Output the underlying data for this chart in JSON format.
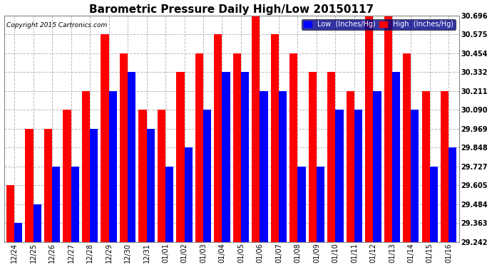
{
  "title": "Barometric Pressure Daily High/Low 20150117",
  "copyright": "Copyright 2015 Cartronics.com",
  "dates": [
    "12/24",
    "12/25",
    "12/26",
    "12/27",
    "12/28",
    "12/29",
    "12/30",
    "12/31",
    "01/01",
    "01/02",
    "01/03",
    "01/04",
    "01/05",
    "01/06",
    "01/07",
    "01/08",
    "01/09",
    "01/10",
    "01/11",
    "01/12",
    "01/13",
    "01/14",
    "01/15",
    "01/16"
  ],
  "high": [
    29.605,
    29.969,
    29.969,
    30.09,
    30.211,
    30.575,
    30.454,
    30.09,
    30.09,
    30.332,
    30.454,
    30.575,
    30.454,
    30.696,
    30.575,
    30.454,
    30.332,
    30.332,
    30.211,
    30.696,
    30.696,
    30.454,
    30.211,
    30.211
  ],
  "low": [
    29.363,
    29.484,
    29.727,
    29.727,
    29.969,
    30.211,
    30.332,
    29.969,
    29.727,
    29.848,
    30.09,
    30.332,
    30.332,
    30.211,
    30.211,
    29.727,
    29.727,
    30.09,
    30.09,
    30.211,
    30.332,
    30.09,
    29.727,
    29.848
  ],
  "high_color": "#ff0000",
  "low_color": "#0000ff",
  "bg_color": "#ffffff",
  "ylim_min": 29.242,
  "ylim_max": 30.696,
  "yticks": [
    29.242,
    29.363,
    29.484,
    29.605,
    29.727,
    29.848,
    29.969,
    30.09,
    30.211,
    30.332,
    30.454,
    30.575,
    30.696
  ],
  "grid_color": "#bbbbbb",
  "title_fontsize": 11,
  "bar_width": 0.42
}
